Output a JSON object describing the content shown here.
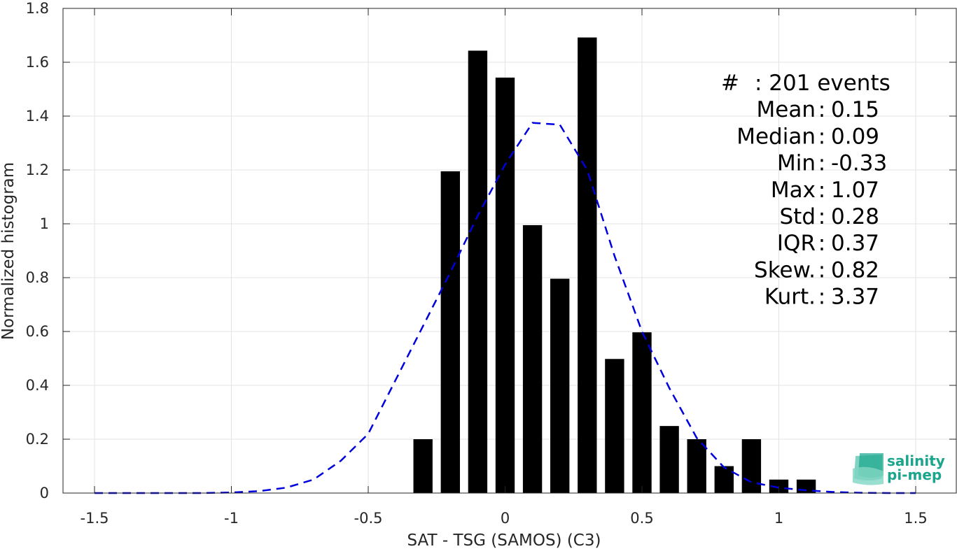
{
  "chart_data": {
    "type": "bar",
    "xlabel": "SAT - TSG (SAMOS) (C3)",
    "ylabel": "Normalized histogram",
    "xlim": [
      -1.5,
      1.5
    ],
    "ylim": [
      0,
      1.8
    ],
    "xticks": [
      -1.5,
      -1,
      -0.5,
      0,
      0.5,
      1,
      1.5
    ],
    "xtick_labels": [
      "-1.5",
      "-1",
      "-0.5",
      "0",
      "0.5",
      "1",
      "1.5"
    ],
    "yticks": [
      0,
      0.2,
      0.4,
      0.6,
      0.8,
      1,
      1.2,
      1.4,
      1.6,
      1.8
    ],
    "ytick_labels": [
      "0",
      "0.2",
      "0.4",
      "0.6",
      "0.8",
      "1",
      "1.2",
      "1.4",
      "1.6",
      "1.8"
    ],
    "grid": true,
    "bar_width": 0.07,
    "bars": {
      "x": [
        -0.3,
        -0.2,
        -0.1,
        0.0,
        0.1,
        0.2,
        0.3,
        0.4,
        0.5,
        0.6,
        0.7,
        0.8,
        0.9,
        1.0,
        1.1
      ],
      "values": [
        0.2,
        1.195,
        1.643,
        1.543,
        0.995,
        0.796,
        1.692,
        0.498,
        0.597,
        0.249,
        0.2,
        0.1,
        0.2,
        0.05,
        0.05
      ],
      "color": "#000000"
    },
    "fit_line": {
      "style": "dashed",
      "color": "#0000dd",
      "x": [
        -1.5,
        -1.4,
        -1.3,
        -1.2,
        -1.1,
        -1.0,
        -0.9,
        -0.8,
        -0.7,
        -0.6,
        -0.5,
        -0.4,
        -0.3,
        -0.2,
        -0.1,
        0.0,
        0.1,
        0.2,
        0.3,
        0.4,
        0.5,
        0.6,
        0.7,
        0.8,
        0.9,
        1.0,
        1.1,
        1.2,
        1.3,
        1.4,
        1.5
      ],
      "y": [
        0.0,
        0.0,
        0.0,
        0.0,
        0.0,
        0.002,
        0.007,
        0.02,
        0.05,
        0.12,
        0.22,
        0.42,
        0.62,
        0.82,
        1.03,
        1.22,
        1.375,
        1.368,
        1.2,
        0.88,
        0.6,
        0.39,
        0.205,
        0.095,
        0.04,
        0.02,
        0.01,
        0.004,
        0.001,
        0.0,
        0.0
      ]
    }
  },
  "stats": [
    {
      "label": "#",
      "sep": ":",
      "value": "201 events"
    },
    {
      "label": "Mean",
      "sep": ":",
      "value": "0.15"
    },
    {
      "label": "Median",
      "sep": ":",
      "value": "0.09"
    },
    {
      "label": "Min",
      "sep": ":",
      "value": "-0.33"
    },
    {
      "label": "Max",
      "sep": ":",
      "value": "1.07"
    },
    {
      "label": "Std",
      "sep": ":",
      "value": "0.28"
    },
    {
      "label": "IQR",
      "sep": ":",
      "value": "0.37"
    },
    {
      "label": "Skew.",
      "sep": ":",
      "value": "0.82"
    },
    {
      "label": "Kurt.",
      "sep": ":",
      "value": "3.37"
    }
  ],
  "logo": {
    "line1": "salinity",
    "line2": "pi-mep",
    "color": "#1aa58c"
  }
}
